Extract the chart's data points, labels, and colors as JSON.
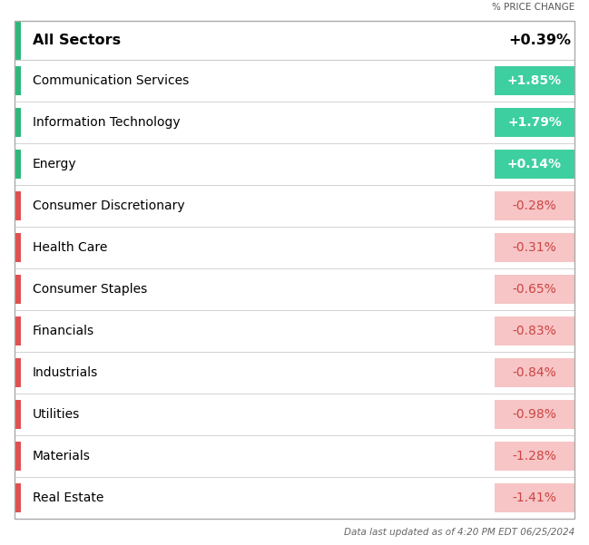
{
  "header_label": "% PRICE CHANGE",
  "all_sectors_label": "All Sectors",
  "all_sectors_value": "+0.39%",
  "sectors": [
    {
      "name": "Communication Services",
      "value": "+1.85%",
      "change": 1.85
    },
    {
      "name": "Information Technology",
      "value": "+1.79%",
      "change": 1.79
    },
    {
      "name": "Energy",
      "value": "+0.14%",
      "change": 0.14
    },
    {
      "name": "Consumer Discretionary",
      "value": "-0.28%",
      "change": -0.28
    },
    {
      "name": "Health Care",
      "value": "-0.31%",
      "change": -0.31
    },
    {
      "name": "Consumer Staples",
      "value": "-0.65%",
      "change": -0.65
    },
    {
      "name": "Financials",
      "value": "-0.83%",
      "change": -0.83
    },
    {
      "name": "Industrials",
      "value": "-0.84%",
      "change": -0.84
    },
    {
      "name": "Utilities",
      "value": "-0.98%",
      "change": -0.98
    },
    {
      "name": "Materials",
      "value": "-1.28%",
      "change": -1.28
    },
    {
      "name": "Real Estate",
      "value": "-1.41%",
      "change": -1.41
    }
  ],
  "positive_bar_color": "#3ecfa0",
  "negative_bar_color": "#f7c5c5",
  "positive_text_color": "#ffffff",
  "negative_text_color": "#cc4444",
  "positive_side_bar": "#2db87a",
  "negative_side_bar": "#e05050",
  "background_color": "#ffffff",
  "border_color": "#cccccc",
  "footer_text": "Data last updated as of 4:20 PM EDT 06/25/2024"
}
